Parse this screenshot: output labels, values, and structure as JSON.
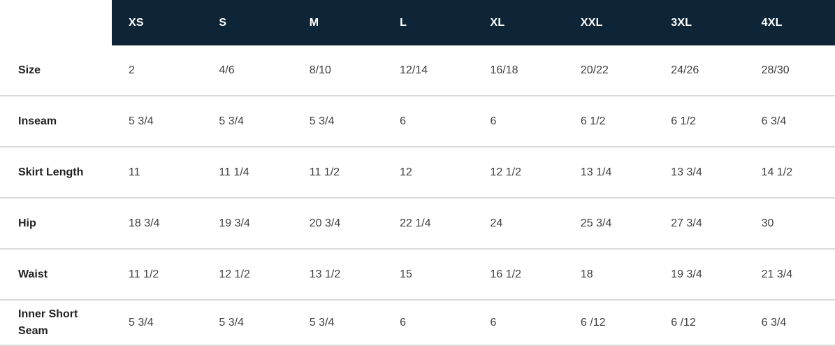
{
  "chart_data": {
    "type": "table",
    "columns": [
      "XS",
      "S",
      "M",
      "L",
      "XL",
      "XXL",
      "3XL",
      "4XL"
    ],
    "rows": [
      {
        "label": "Size",
        "values": [
          "2",
          "4/6",
          "8/10",
          "12/14",
          "16/18",
          "20/22",
          "24/26",
          "28/30"
        ]
      },
      {
        "label": "Inseam",
        "values": [
          "5 3/4",
          "5 3/4",
          "5 3/4",
          "6",
          "6",
          "6 1/2",
          "6 1/2",
          "6 3/4"
        ]
      },
      {
        "label": "Skirt Length",
        "values": [
          "11",
          "11 1/4",
          "11 1/2",
          "12",
          "12 1/2",
          "13 1/4",
          "13 3/4",
          "14 1/2"
        ]
      },
      {
        "label": "Hip",
        "values": [
          "18 3/4",
          "19 3/4",
          "20 3/4",
          "22 1/4",
          "24",
          "25 3/4",
          "27 3/4",
          "30"
        ]
      },
      {
        "label": "Waist",
        "values": [
          "11 1/2",
          "12 1/2",
          "13 1/2",
          "15",
          "16 1/2",
          "18",
          "19 3/4",
          "21 3/4"
        ]
      },
      {
        "label": "Inner Short Seam",
        "values": [
          "5 3/4",
          "5 3/4",
          "5 3/4",
          "6",
          "6",
          "6 /12",
          "6 /12",
          "6 3/4"
        ]
      }
    ]
  },
  "colors": {
    "header_bg": "#0d2536",
    "header_text": "#ffffff",
    "label_text": "#212121",
    "value_text": "#3f3f3f",
    "divider": "#d9dadb",
    "background": "#ffffff"
  }
}
